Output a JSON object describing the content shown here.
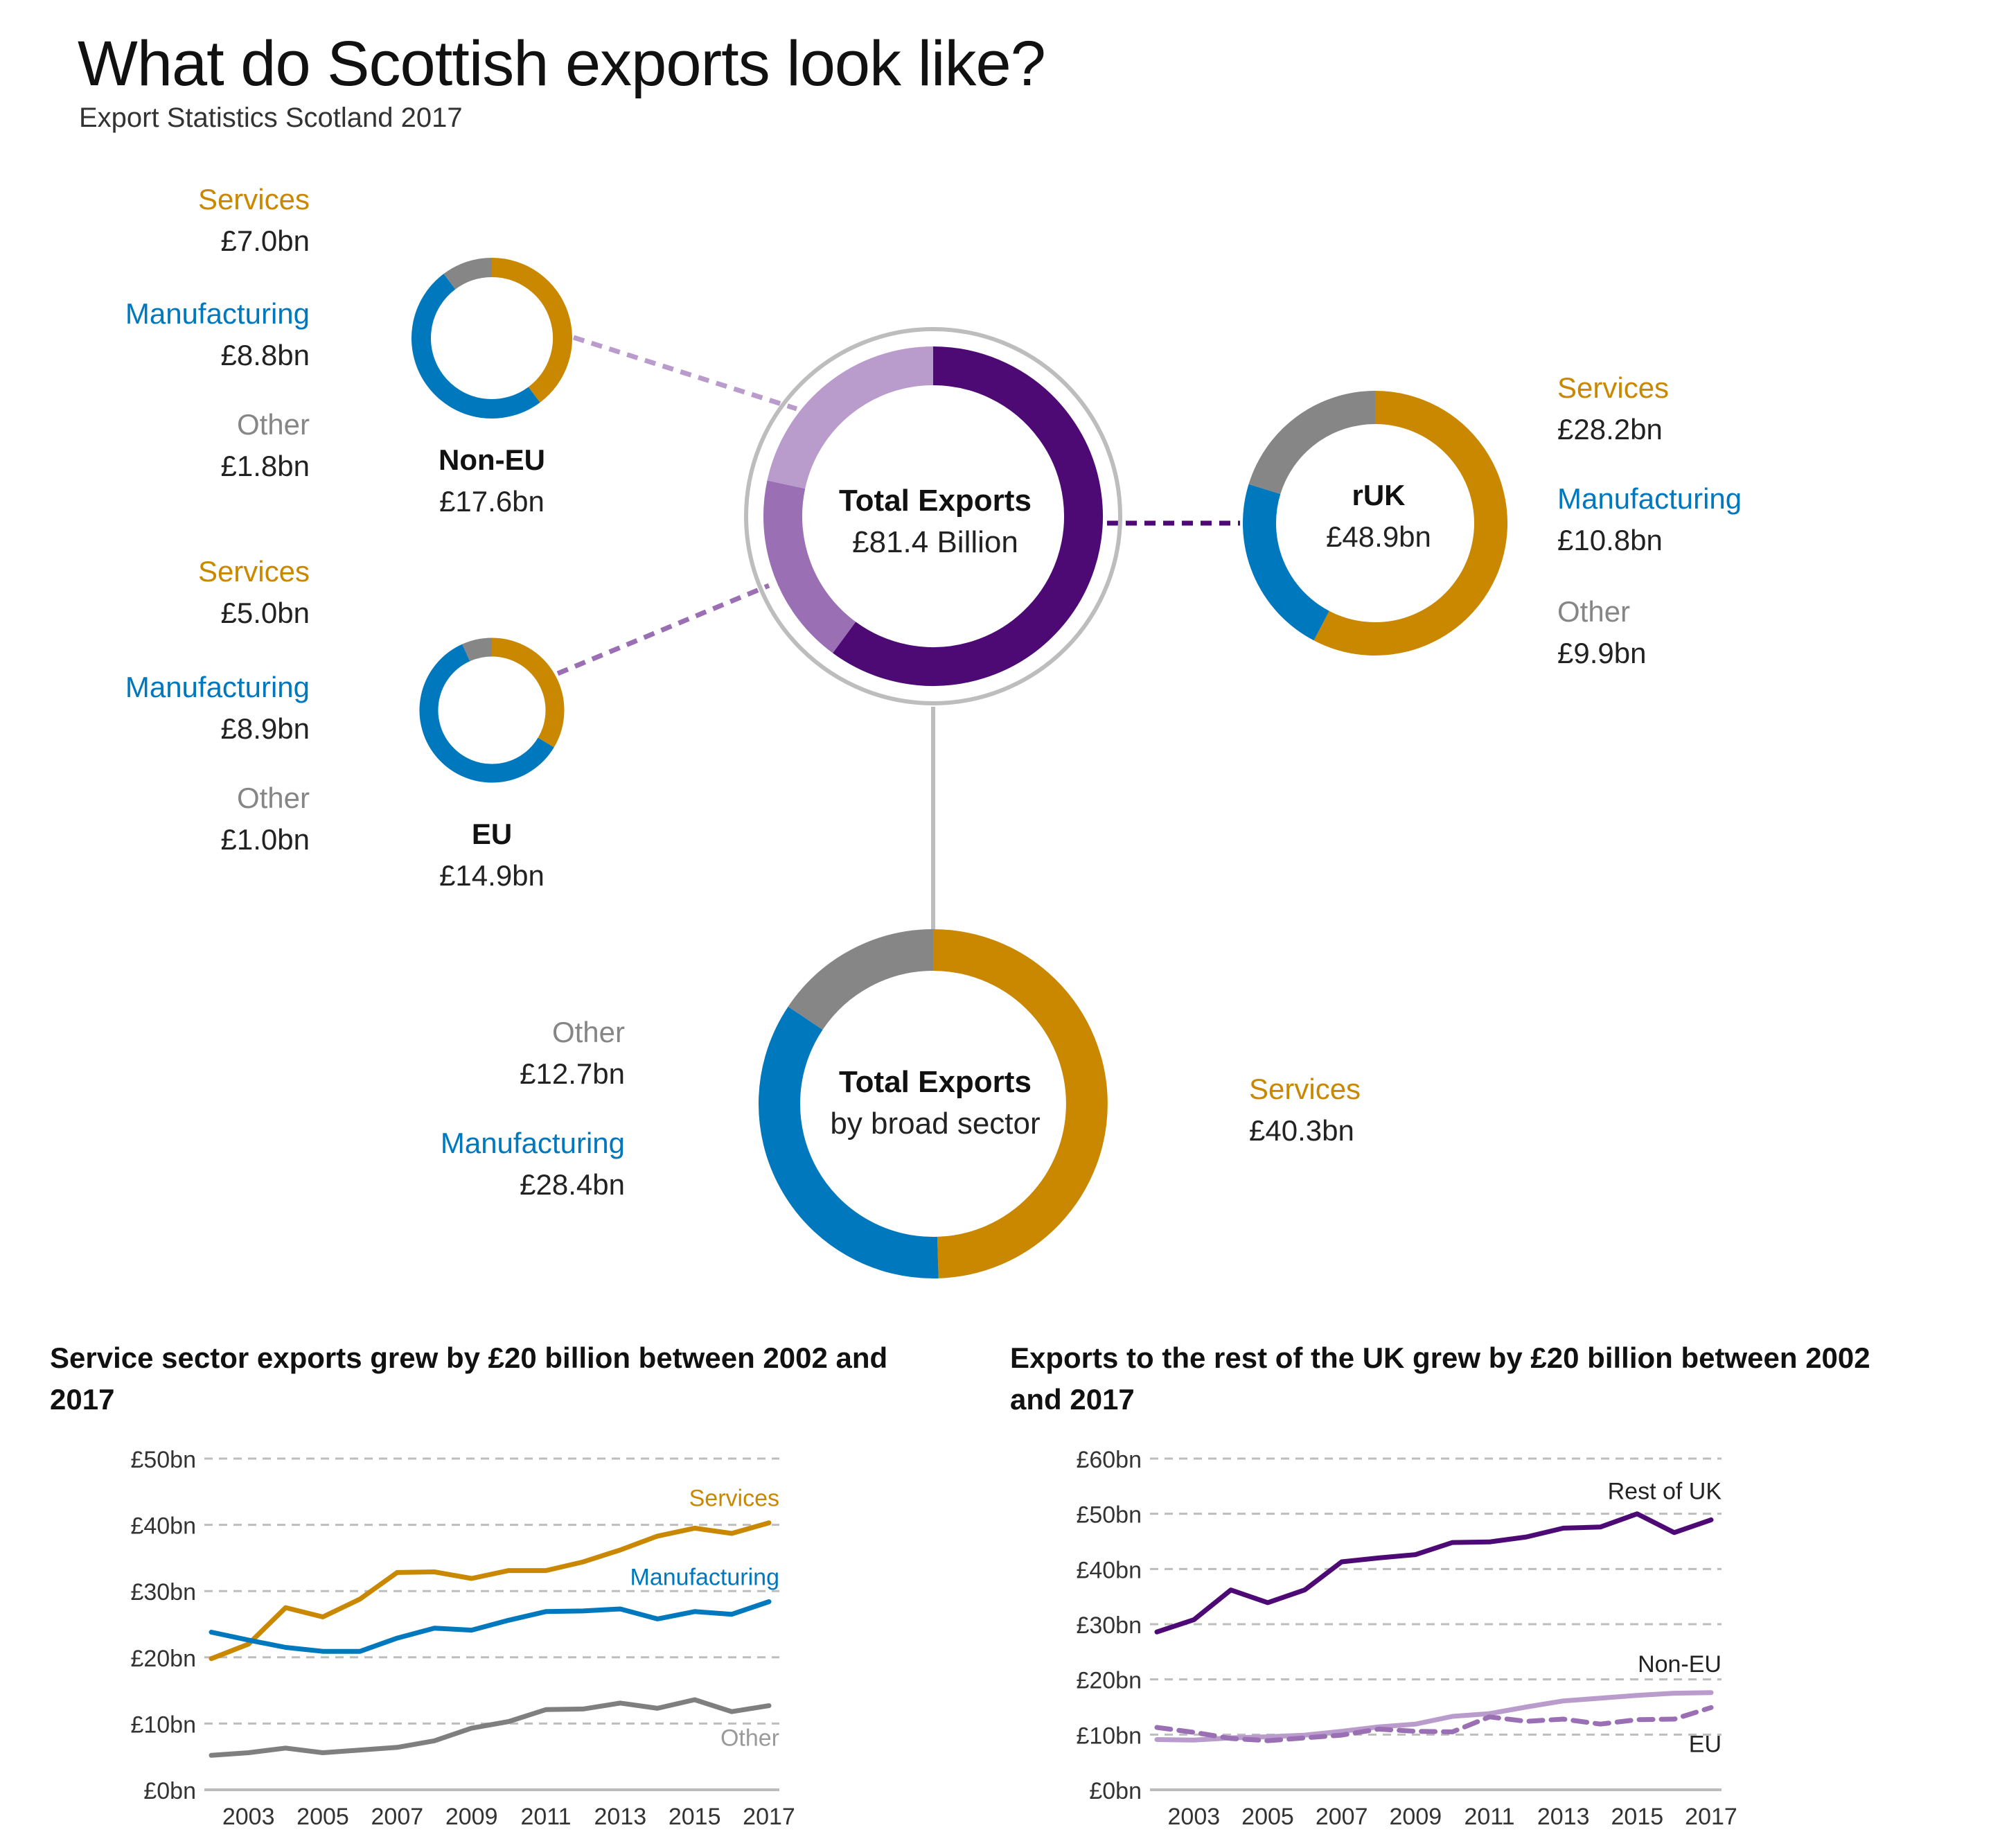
{
  "header": {
    "title": "What do Scottish exports look like?",
    "subtitle": "Export Statistics Scotland 2017"
  },
  "colors": {
    "services": "#c98800",
    "manufacturing": "#0078bd",
    "other": "#868686",
    "ruk": "#4e0a74",
    "nonEU": "#b99ccc",
    "eu": "#9a6fb3",
    "ring": "#bdbdbd",
    "grid": "#bdbdbd"
  },
  "nonEU": {
    "name": "Non-EU",
    "total": "£17.6bn",
    "services": {
      "label": "Services",
      "value": "£7.0bn"
    },
    "manufacturing": {
      "label": "Manufacturing",
      "value": "£8.8bn"
    },
    "other": {
      "label": "Other",
      "value": "£1.8bn"
    }
  },
  "eu": {
    "name": "EU",
    "total": "£14.9bn",
    "services": {
      "label": "Services",
      "value": "£5.0bn"
    },
    "manufacturing": {
      "label": "Manufacturing",
      "value": "£8.9bn"
    },
    "other": {
      "label": "Other",
      "value": "£1.0bn"
    }
  },
  "ruk": {
    "name": "rUK",
    "total": "£48.9bn",
    "services": {
      "label": "Services",
      "value": "£28.2bn"
    },
    "manufacturing": {
      "label": "Manufacturing",
      "value": "£10.8bn"
    },
    "other": {
      "label": "Other",
      "value": "£9.9bn"
    }
  },
  "total": {
    "title": "Total Exports",
    "value": "£81.4 Billion"
  },
  "sector": {
    "title": "Total Exports",
    "subtitle": "by broad sector",
    "services": {
      "label": "Services",
      "value": "£40.3bn"
    },
    "manufacturing": {
      "label": "Manufacturing",
      "value": "£28.4bn"
    },
    "other": {
      "label": "Other",
      "value": "£12.7bn"
    }
  },
  "chart_data": [
    {
      "type": "pie",
      "title": "Total Exports £81.4 Billion",
      "categories": [
        "rUK",
        "EU",
        "Non-EU"
      ],
      "values": [
        48.9,
        14.9,
        17.6
      ]
    },
    {
      "type": "pie",
      "title": "Total Exports by broad sector",
      "categories": [
        "Services",
        "Manufacturing",
        "Other"
      ],
      "values": [
        40.3,
        28.4,
        12.7
      ]
    },
    {
      "type": "pie",
      "title": "Non-EU",
      "categories": [
        "Services",
        "Manufacturing",
        "Other"
      ],
      "values": [
        7.0,
        8.8,
        1.8
      ]
    },
    {
      "type": "pie",
      "title": "EU",
      "categories": [
        "Services",
        "Manufacturing",
        "Other"
      ],
      "values": [
        5.0,
        8.9,
        1.0
      ]
    },
    {
      "type": "pie",
      "title": "rUK",
      "categories": [
        "Services",
        "Manufacturing",
        "Other"
      ],
      "values": [
        28.2,
        10.8,
        9.9
      ]
    },
    {
      "type": "line",
      "title": "Service sector exports grew by £20 billion between 2002 and 2017",
      "x": [
        2002,
        2003,
        2004,
        2005,
        2006,
        2007,
        2008,
        2009,
        2010,
        2011,
        2012,
        2013,
        2014,
        2015,
        2016,
        2017
      ],
      "xticks": [
        "2003",
        "2005",
        "2007",
        "2009",
        "2011",
        "2013",
        "2015",
        "2017"
      ],
      "yticks": [
        "£0bn",
        "£10bn",
        "£20bn",
        "£30bn",
        "£40bn",
        "£50bn"
      ],
      "ylim": [
        0,
        50
      ],
      "series": [
        {
          "name": "Services",
          "values": [
            19.8,
            22.0,
            27.5,
            26.1,
            28.8,
            32.8,
            32.9,
            31.9,
            33.1,
            33.1,
            34.4,
            36.2,
            38.3,
            39.5,
            38.7,
            40.3
          ]
        },
        {
          "name": "Manufacturing",
          "values": [
            23.8,
            22.6,
            21.5,
            20.9,
            20.9,
            22.9,
            24.4,
            24.1,
            25.6,
            26.9,
            27.0,
            27.3,
            25.8,
            26.9,
            26.5,
            28.4
          ]
        },
        {
          "name": "Other",
          "values": [
            5.2,
            5.6,
            6.3,
            5.6,
            6.0,
            6.4,
            7.4,
            9.3,
            10.3,
            12.1,
            12.2,
            13.1,
            12.3,
            13.6,
            11.8,
            12.7
          ]
        }
      ]
    },
    {
      "type": "line",
      "title": "Exports to the rest of the UK grew by £20 billion between 2002 and 2017",
      "x": [
        2002,
        2003,
        2004,
        2005,
        2006,
        2007,
        2008,
        2009,
        2010,
        2011,
        2012,
        2013,
        2014,
        2015,
        2016,
        2017
      ],
      "xticks": [
        "2003",
        "2005",
        "2007",
        "2009",
        "2011",
        "2013",
        "2015",
        "2017"
      ],
      "yticks": [
        "£0bn",
        "£10bn",
        "£20bn",
        "£30bn",
        "£40bn",
        "£50bn",
        "£60bn"
      ],
      "ylim": [
        0,
        60
      ],
      "series": [
        {
          "name": "Rest of UK",
          "values": [
            28.6,
            30.8,
            36.2,
            33.9,
            36.2,
            41.3,
            42.0,
            42.6,
            44.8,
            44.9,
            45.8,
            47.4,
            47.6,
            50.0,
            46.6,
            48.9
          ]
        },
        {
          "name": "Non-EU",
          "values": [
            9.1,
            9.0,
            9.4,
            9.6,
            9.9,
            10.6,
            11.4,
            11.9,
            13.3,
            13.8,
            15.0,
            16.1,
            16.6,
            17.1,
            17.5,
            17.6
          ]
        },
        {
          "name": "EU",
          "values": [
            11.3,
            10.4,
            9.3,
            8.9,
            9.4,
            9.9,
            11.0,
            10.6,
            10.5,
            13.2,
            12.4,
            12.8,
            11.9,
            12.7,
            12.8,
            14.9
          ]
        }
      ]
    }
  ]
}
